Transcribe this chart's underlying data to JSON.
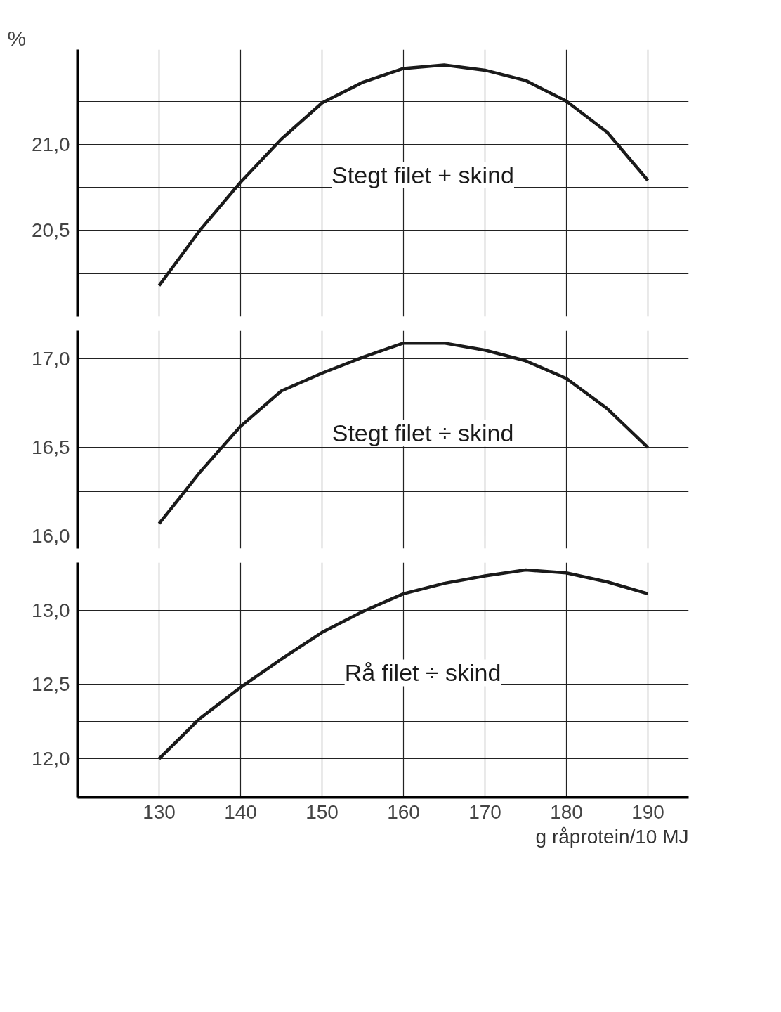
{
  "chart_data": [
    {
      "type": "line",
      "ylabel": "%",
      "x": [
        130,
        135,
        140,
        145,
        150,
        155,
        160,
        165,
        170,
        175,
        180,
        185,
        190
      ],
      "xlim": [
        120,
        195
      ],
      "xticks": [
        130,
        140,
        150,
        160,
        170,
        180,
        190
      ],
      "ylim": [
        20.0,
        21.55
      ],
      "yticks": [
        {
          "value": 20.25,
          "label": null
        },
        {
          "value": 20.5,
          "label": "20,5"
        },
        {
          "value": 20.75,
          "label": null
        },
        {
          "value": 21.0,
          "label": "21,0"
        },
        {
          "value": 21.25,
          "label": null
        }
      ],
      "grid": true,
      "tick_labels": "y",
      "series": [
        {
          "name": "Stegt filet + skind",
          "color": "#1a1a1a",
          "values": [
            20.18,
            20.5,
            20.78,
            21.03,
            21.24,
            21.36,
            21.44,
            21.46,
            21.43,
            21.37,
            21.25,
            21.07,
            20.79
          ]
        }
      ]
    },
    {
      "type": "line",
      "x": [
        130,
        135,
        140,
        145,
        150,
        155,
        160,
        165,
        170,
        175,
        180,
        185,
        190
      ],
      "xlim": [
        120,
        195
      ],
      "xticks": [
        130,
        140,
        150,
        160,
        170,
        180,
        190
      ],
      "ylim": [
        15.93,
        17.16
      ],
      "yticks": [
        {
          "value": 16.0,
          "label": "16,0"
        },
        {
          "value": 16.25,
          "label": null
        },
        {
          "value": 16.5,
          "label": "16,5"
        },
        {
          "value": 16.75,
          "label": null
        },
        {
          "value": 17.0,
          "label": "17,0"
        }
      ],
      "grid": true,
      "tick_labels": "y",
      "series": [
        {
          "name": "Stegt filet ÷ skind",
          "color": "#1a1a1a",
          "values": [
            16.07,
            16.36,
            16.62,
            16.82,
            16.92,
            17.01,
            17.09,
            17.09,
            17.05,
            16.99,
            16.89,
            16.72,
            16.5
          ]
        }
      ]
    },
    {
      "type": "line",
      "xlabel": "g råprotein/10 MJ",
      "x": [
        130,
        135,
        140,
        145,
        150,
        155,
        160,
        165,
        170,
        175,
        180,
        185,
        190
      ],
      "xlim": [
        120,
        195
      ],
      "xticks": [
        130,
        140,
        150,
        160,
        170,
        180,
        190
      ],
      "ylim": [
        11.74,
        13.32
      ],
      "yticks": [
        {
          "value": 12.0,
          "label": "12,0"
        },
        {
          "value": 12.25,
          "label": null
        },
        {
          "value": 12.5,
          "label": "12,5"
        },
        {
          "value": 12.75,
          "label": null
        },
        {
          "value": 13.0,
          "label": "13,0"
        }
      ],
      "grid": true,
      "series": [
        {
          "name": "Rå filet ÷ skind",
          "color": "#1a1a1a",
          "values": [
            12.0,
            12.27,
            12.48,
            12.67,
            12.85,
            12.99,
            13.11,
            13.18,
            13.23,
            13.27,
            13.25,
            13.19,
            13.11
          ]
        }
      ]
    }
  ]
}
